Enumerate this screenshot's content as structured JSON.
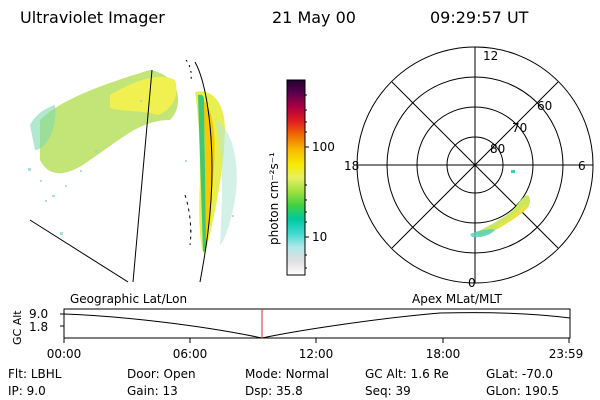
{
  "header": {
    "instrument": "Ultraviolet Imager",
    "date": "21 May 00",
    "time": "09:29:57 UT"
  },
  "colorbar": {
    "label": "photon cm⁻²s⁻¹",
    "ticks": [
      "100",
      "10"
    ],
    "colors": [
      "#ffffff",
      "#e0e0e0",
      "#b0e8e8",
      "#40d8d0",
      "#00c8a0",
      "#40d040",
      "#a0e040",
      "#e8f060",
      "#f8e800",
      "#f8b800",
      "#f07000",
      "#e02020",
      "#b00040",
      "#600050",
      "#200030"
    ]
  },
  "polar": {
    "hour_labels": {
      "top": "12",
      "bottom": "0",
      "left": "18",
      "right": "6"
    },
    "lat_labels": [
      "60",
      "70",
      "80"
    ]
  },
  "panels": {
    "left_label": "Geographic Lat/Lon",
    "right_label": "Apex MLat/MLT"
  },
  "timeline": {
    "axis_title": "GC Alt",
    "y_ticks": [
      "9.0",
      "1.8"
    ],
    "x_ticks": [
      "00:00",
      "06:00",
      "12:00",
      "18:00",
      "23:59"
    ],
    "current_marker_color": "#e02020"
  },
  "status": {
    "row1": [
      {
        "key": "Flt:",
        "value": "LBHL"
      },
      {
        "key": "Door:",
        "value": "Open"
      },
      {
        "key": "Mode:",
        "value": "Normal"
      },
      {
        "key": "GC Alt:",
        "value": "1.6 Re"
      },
      {
        "key": "GLat:",
        "value": "-70.0"
      }
    ],
    "row2": [
      {
        "key": "IP:",
        "value": "9.0"
      },
      {
        "key": "Gain:",
        "value": "13"
      },
      {
        "key": "Dsp:",
        "value": "35.8"
      },
      {
        "key": "Seq:",
        "value": "39"
      },
      {
        "key": "GLon:",
        "value": "190.5"
      }
    ]
  }
}
